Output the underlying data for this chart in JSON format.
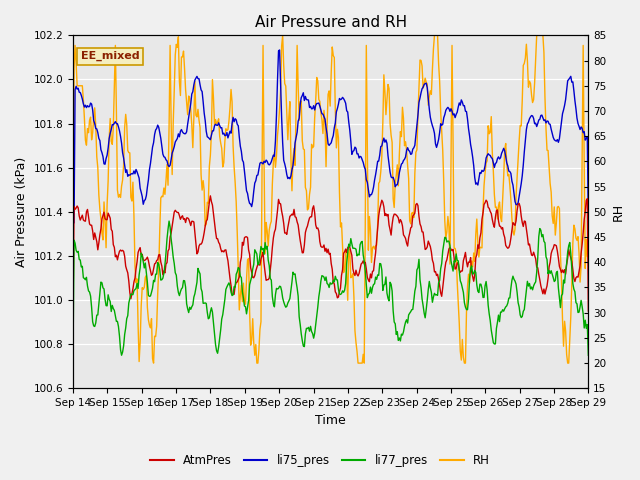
{
  "title": "Air Pressure and RH",
  "xlabel": "Time",
  "ylabel_left": "Air Pressure (kPa)",
  "ylabel_right": "RH",
  "annotation": "EE_mixed",
  "ylim_left": [
    100.6,
    102.2
  ],
  "ylim_right": [
    15,
    85
  ],
  "yticks_left": [
    100.6,
    100.8,
    101.0,
    101.2,
    101.4,
    101.6,
    101.8,
    102.0,
    102.2
  ],
  "yticks_right": [
    15,
    20,
    25,
    30,
    35,
    40,
    45,
    50,
    55,
    60,
    65,
    70,
    75,
    80,
    85
  ],
  "xtick_labels": [
    "Sep 14",
    "Sep 15",
    "Sep 16",
    "Sep 17",
    "Sep 18",
    "Sep 19",
    "Sep 20",
    "Sep 21",
    "Sep 22",
    "Sep 23",
    "Sep 24",
    "Sep 25",
    "Sep 26",
    "Sep 27",
    "Sep 28",
    "Sep 29"
  ],
  "num_days": 15,
  "colors": {
    "AtmPres": "#cc0000",
    "li75_pres": "#0000cc",
    "li77_pres": "#00aa00",
    "RH": "#ffaa00"
  },
  "legend_labels": [
    "AtmPres",
    "li75_pres",
    "li77_pres",
    "RH"
  ],
  "plot_bg_color": "#e8e8e8",
  "fig_bg_color": "#f0f0f0",
  "grid_color": "#ffffff",
  "title_fontsize": 11,
  "axis_label_fontsize": 9,
  "tick_fontsize": 7.5,
  "legend_fontsize": 8.5,
  "annotation_fontsize": 8,
  "linewidth": 1.0
}
